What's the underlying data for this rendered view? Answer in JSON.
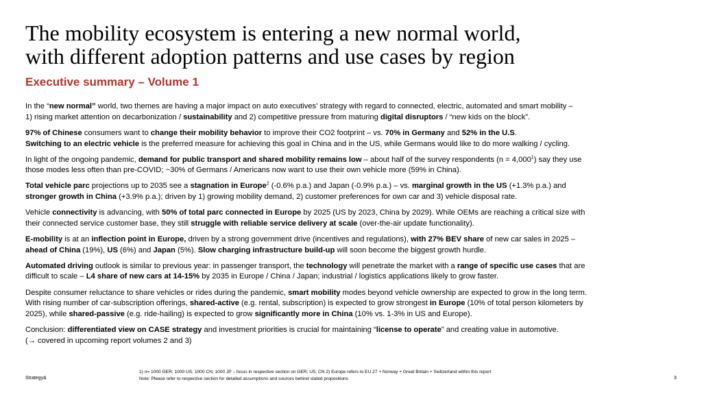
{
  "title": {
    "line1": "The mobility ecosystem is entering a new normal world,",
    "line2": "with different adoption patterns and use cases by region"
  },
  "subtitle": "Executive summary – Volume 1",
  "paragraphs": {
    "p1": {
      "l1": {
        "a": "In the “",
        "b": "new normal”",
        "c": " world, two themes are having a major impact on auto executives’ strategy with regard to connected, electric, automated and smart mobility –"
      },
      "l2": {
        "a": "1) rising market attention on decarbonization / ",
        "b": "sustainability",
        "c": " and 2) competitive pressure from maturing ",
        "d": "digital disruptors",
        "e": " / “new kids on the block”."
      }
    },
    "p2": {
      "l1": {
        "a": "97% of Chinese",
        "b": " consumers want to ",
        "c": "change their mobility behavior",
        "d": " to improve their CO2 footprint – vs. ",
        "e": "70% in Germany",
        "f": " and ",
        "g": "52% in the U.S",
        "h": "."
      },
      "l2": {
        "a": "Switching to an electric vehicle",
        "b": " is the preferred measure for achieving this goal in China and in the US, while Germans would like to do more walking / cycling."
      }
    },
    "p3": {
      "l1": {
        "a": "In light of the ongoing pandemic, ",
        "b": "demand for public transport and shared mobility remains low",
        "c": " – about half of the survey respondents (n = 4,000",
        "sup": "1",
        "d": ") say they use"
      },
      "l2": "those modes less often than pre-COVID; ~30% of Germans / Americans now want to use their own vehicle more (59% in China)."
    },
    "p4": {
      "l1": {
        "a": "Total vehicle parc",
        "b": " projections up to 2035 see a ",
        "c": "stagnation in Europe",
        "sup": "2",
        "d": " (-0.6% p.a.) and Japan (-0.9% p.a.) – vs. ",
        "e": "marginal growth in the US",
        "f": " (+1.3% p.a.) and"
      },
      "l2": {
        "a": "stronger growth in China",
        "b": " (+3.9% p.a.); driven by 1) growing mobility demand, 2) customer preferences for own car and 3) vehicle disposal rate."
      }
    },
    "p5": {
      "l1": {
        "a": "Vehicle ",
        "b": "connectivity",
        "c": " is advancing, with ",
        "d": "50% of total parc connected in Europe",
        "e": " by 2025 (US by 2023, China by 2029). While OEMs are reaching a critical size with"
      },
      "l2": {
        "a": "their connected service customer base, they still ",
        "b": "struggle with reliable service delivery at scale",
        "c": " (over-the-air update functionality)."
      }
    },
    "p6": {
      "l1": {
        "a": "E-mobility",
        "b": " is at an ",
        "c": "inflection point in Europe,",
        "d": " driven by a strong government drive (incentives and regulations), ",
        "e": "with 27% BEV share",
        "f": " of new car sales in 2025 –"
      },
      "l2": {
        "a": "ahead of China",
        "b": " (19%), ",
        "c": "US",
        "d": " (6%) and ",
        "e": "Japan",
        "f": " (5%). ",
        "g": "Slow charging infrastructure build-up",
        "h": " will soon become the biggest growth hurdle."
      }
    },
    "p7": {
      "l1": {
        "a": "Automated driving",
        "b": " outlook is similar to previous year: in passenger transport, the ",
        "c": "technology",
        "d": " will penetrate the market with a ",
        "e": "range of specific use cases",
        "f": " that are"
      },
      "l2": {
        "a": "difficult to scale – ",
        "b": "L4 share of new cars at 14-15%",
        "c": " by 2035 in Europe / China / Japan; industrial / logistics applications likely to grow faster."
      }
    },
    "p8": {
      "l1": {
        "a": "Despite consumer reluctance to share vehicles or rides during the pandemic, ",
        "b": "smart mobility",
        "c": " modes beyond vehicle ownership are expected to grow in the long term."
      },
      "l2": {
        "a": "With rising number of car-subscription offerings, ",
        "b": "shared-active",
        "c": " (e.g. rental, subscription) is expected to grow strongest ",
        "d": "in Europe",
        "e": " (10% of total person kilometers by"
      },
      "l3": {
        "a": "2025), while ",
        "b": "shared-passive",
        "c": " (e.g. ride-hailing) is expected to grow ",
        "d": "significantly more in China",
        "e": " (10% vs. 1-3% in US and Europe)."
      }
    },
    "p9": {
      "l1": {
        "a": "Conclusion: ",
        "b": "differentiated view on CASE strategy",
        "c": " and investment priorities is crucial for maintaining “",
        "d": "license to operate",
        "e": "” and creating value in automotive."
      },
      "l2": "(→ covered in upcoming report volumes 2 and 3)"
    }
  },
  "footnotes": {
    "line1": "1) n= 1000 GER; 1000 US; 1000 CN; 1000 JP – focus in respective section on GER; US; CN 2) Europe refers to EU 27 + Norway + Great Britain + Switzerland within this report",
    "line2": "Note: Please refer to respective section for detailed assumptions and sources behind stated propositions"
  },
  "brand": "Strategy&",
  "page_number": "3",
  "colors": {
    "accent": "#b3322b",
    "text": "#000000",
    "background": "#ffffff"
  }
}
